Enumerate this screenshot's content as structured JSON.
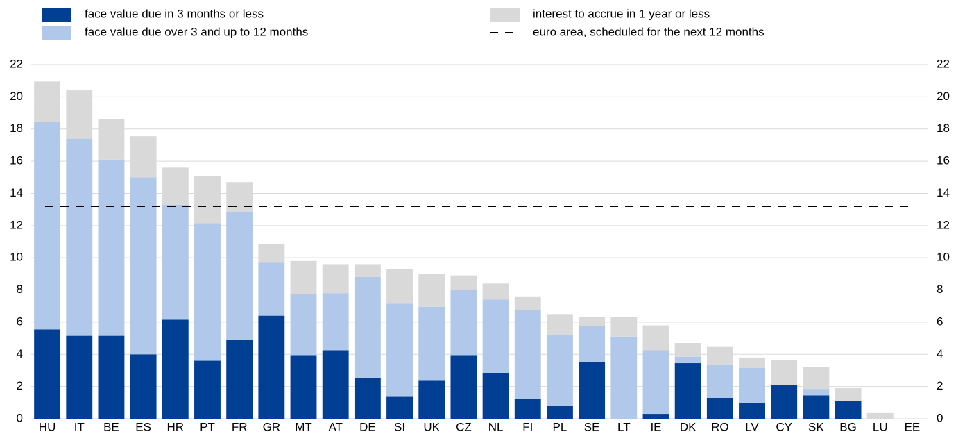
{
  "chart_data": {
    "type": "stacked-bar",
    "categories": [
      "HU",
      "IT",
      "BE",
      "ES",
      "HR",
      "PT",
      "FR",
      "GR",
      "MT",
      "AT",
      "DE",
      "SI",
      "UK",
      "CZ",
      "NL",
      "FI",
      "PL",
      "SE",
      "LT",
      "IE",
      "DK",
      "RO",
      "LV",
      "CY",
      "SK",
      "BG",
      "LU",
      "EE"
    ],
    "series": [
      {
        "name": "face value due in 3 months or less",
        "color": "#003f94",
        "values": [
          5.55,
          5.15,
          5.15,
          4.0,
          6.15,
          3.6,
          4.9,
          6.4,
          3.95,
          4.25,
          2.55,
          1.4,
          2.4,
          3.95,
          2.85,
          1.25,
          0.8,
          3.5,
          0,
          0.3,
          3.45,
          1.3,
          0.95,
          2.1,
          1.45,
          1.1,
          0,
          0
        ]
      },
      {
        "name": "face value due over 3 and up to 12 months",
        "color": "#b0c8ea",
        "values": [
          12.9,
          12.25,
          10.95,
          11.0,
          7.15,
          8.55,
          7.95,
          3.3,
          3.8,
          3.55,
          6.25,
          5.75,
          4.55,
          4.05,
          4.55,
          5.5,
          4.4,
          2.25,
          5.1,
          3.95,
          0.4,
          2.05,
          2.2,
          0,
          0.4,
          0,
          0,
          0
        ]
      },
      {
        "name": "interest to accrue in 1 year or less",
        "color": "#d9d9d9",
        "values": [
          2.5,
          3.0,
          2.5,
          2.55,
          2.3,
          2.95,
          1.85,
          1.15,
          2.05,
          1.8,
          0.8,
          2.15,
          2.05,
          0.9,
          1.0,
          0.85,
          1.3,
          0.55,
          1.2,
          1.55,
          0.85,
          1.15,
          0.65,
          1.55,
          1.35,
          0.8,
          0.35,
          0
        ]
      }
    ],
    "reference_line": {
      "name": "euro area, scheduled for the next 12 months",
      "value": 13.2,
      "color": "#000000"
    },
    "ylim": [
      0,
      22
    ],
    "yticks": [
      0,
      2,
      4,
      6,
      8,
      10,
      12,
      14,
      16,
      18,
      20,
      22
    ],
    "y2lim": [
      0,
      22
    ],
    "y2ticks": [
      0,
      2,
      4,
      6,
      8,
      10,
      12,
      14,
      16,
      18,
      20,
      22
    ],
    "grid": true
  }
}
